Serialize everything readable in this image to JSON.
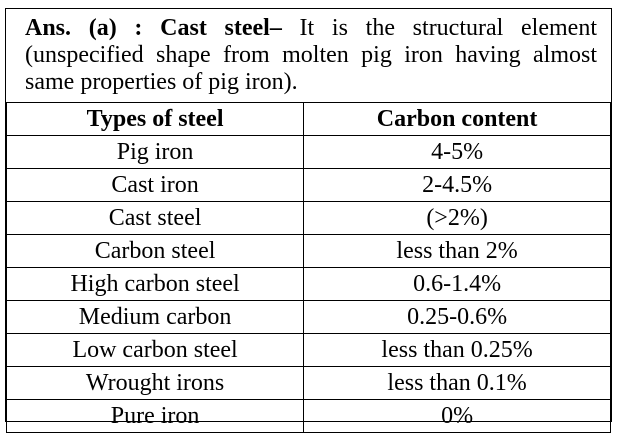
{
  "answer": {
    "lead": "Ans. (a) : Cast steel–",
    "text": "It is the structural element (unspecified shape from molten pig iron having almost same properties of pig iron)."
  },
  "table": {
    "headers": [
      "Types of steel",
      "Carbon content"
    ],
    "rows": [
      [
        "Pig iron",
        "4-5%"
      ],
      [
        "Cast iron",
        "2-4.5%"
      ],
      [
        "Cast steel",
        "(>2%)"
      ],
      [
        "Carbon steel",
        "less than 2%"
      ],
      [
        "High carbon steel",
        "0.6-1.4%"
      ],
      [
        "Medium carbon",
        "0.25-0.6%"
      ],
      [
        "Low carbon steel",
        "less than 0.25%"
      ],
      [
        "Wrought irons",
        "less than 0.1%"
      ],
      [
        "Pure iron",
        "0%"
      ]
    ]
  }
}
